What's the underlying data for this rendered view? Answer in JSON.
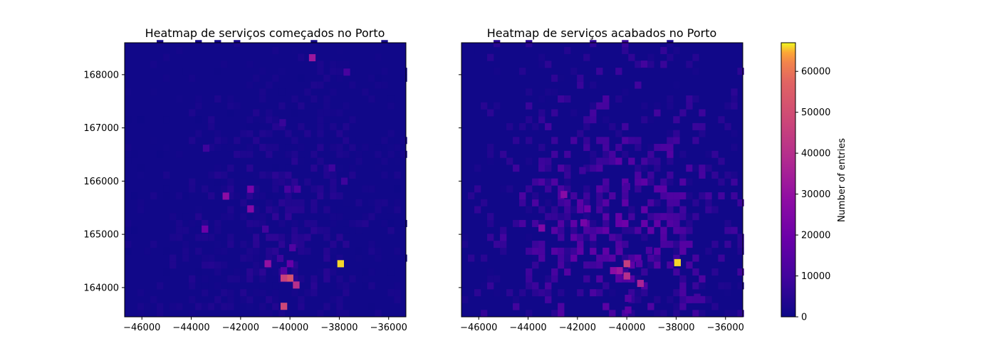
{
  "chart_data": [
    {
      "type": "heatmap",
      "title": "Heatmap de serviços começados no Porto",
      "x_ticks": [
        "−46000",
        "−44000",
        "−42000",
        "−40000",
        "−38000",
        "−36000"
      ],
      "y_ticks": [
        "164000",
        "165000",
        "166000",
        "167000",
        "168000"
      ],
      "xlim": [
        -46700,
        -35300
      ],
      "ylim": [
        163450,
        168600
      ],
      "grid": {
        "x0": -46700,
        "dx": 260,
        "y0": 163450,
        "dy": 130,
        "nx": 44,
        "ny": 40
      },
      "background_level": 800,
      "hotspots": [
        {
          "x": -37950,
          "y": 164450,
          "v": 66000
        },
        {
          "x": -40000,
          "y": 164180,
          "v": 52000
        },
        {
          "x": -40250,
          "y": 164180,
          "v": 46000
        },
        {
          "x": -40250,
          "y": 163650,
          "v": 48000
        },
        {
          "x": -39750,
          "y": 164050,
          "v": 40000
        },
        {
          "x": -39100,
          "y": 168320,
          "v": 32000
        },
        {
          "x": -40900,
          "y": 164450,
          "v": 30000
        },
        {
          "x": -42600,
          "y": 165720,
          "v": 28000
        },
        {
          "x": -41600,
          "y": 165480,
          "v": 26000
        },
        {
          "x": -41600,
          "y": 165850,
          "v": 22000
        },
        {
          "x": -43450,
          "y": 165100,
          "v": 20000
        },
        {
          "x": -40000,
          "y": 164450,
          "v": 18000
        },
        {
          "x": -40250,
          "y": 164320,
          "v": 14000
        },
        {
          "x": -39900,
          "y": 164750,
          "v": 13000
        },
        {
          "x": -39700,
          "y": 165850,
          "v": 12000
        },
        {
          "x": -40100,
          "y": 165850,
          "v": 11000
        },
        {
          "x": -37700,
          "y": 168050,
          "v": 11000
        },
        {
          "x": -41000,
          "y": 165100,
          "v": 10000
        },
        {
          "x": -43400,
          "y": 166620,
          "v": 9000
        },
        {
          "x": -38300,
          "y": 166250,
          "v": 9000
        },
        {
          "x": -37800,
          "y": 166000,
          "v": 9000
        },
        {
          "x": -40300,
          "y": 167100,
          "v": 8000
        },
        {
          "x": -40400,
          "y": 164550,
          "v": 9000
        }
      ]
    },
    {
      "type": "heatmap",
      "title": "Heatmap de serviços acabados no Porto",
      "x_ticks": [
        "−46000",
        "−44000",
        "−42000",
        "−40000",
        "−38000",
        "−36000"
      ],
      "y_ticks": [
        "164000",
        "165000",
        "166000",
        "167000",
        "168000"
      ],
      "xlim": [
        -46700,
        -35300
      ],
      "ylim": [
        163450,
        168600
      ],
      "grid": {
        "x0": -46700,
        "dx": 260,
        "y0": 163450,
        "dy": 130,
        "nx": 44,
        "ny": 40
      },
      "background_level": 2500,
      "hotspots": [
        {
          "x": -37950,
          "y": 164470,
          "v": 66000
        },
        {
          "x": -40000,
          "y": 164450,
          "v": 45000
        },
        {
          "x": -40000,
          "y": 164220,
          "v": 40000
        },
        {
          "x": -40300,
          "y": 164320,
          "v": 32000
        },
        {
          "x": -39450,
          "y": 164080,
          "v": 36000
        },
        {
          "x": -40550,
          "y": 164320,
          "v": 28000
        },
        {
          "x": -42550,
          "y": 165750,
          "v": 27000
        },
        {
          "x": -43450,
          "y": 165120,
          "v": 25000
        },
        {
          "x": -41750,
          "y": 165220,
          "v": 22000
        },
        {
          "x": -41600,
          "y": 165480,
          "v": 20000
        },
        {
          "x": -39950,
          "y": 163580,
          "v": 16000
        },
        {
          "x": -39950,
          "y": 163800,
          "v": 14000
        },
        {
          "x": -40300,
          "y": 164680,
          "v": 15000
        },
        {
          "x": -39500,
          "y": 164450,
          "v": 14000
        },
        {
          "x": -39100,
          "y": 164700,
          "v": 12000
        },
        {
          "x": -37150,
          "y": 163820,
          "v": 10000
        },
        {
          "x": -40000,
          "y": 165900,
          "v": 11000
        },
        {
          "x": -39300,
          "y": 168200,
          "v": 10000
        },
        {
          "x": -41800,
          "y": 166200,
          "v": 9000
        }
      ]
    }
  ],
  "colorbar": {
    "label": "Number of entries",
    "ticks": [
      "0",
      "10000",
      "20000",
      "30000",
      "40000",
      "50000",
      "60000"
    ],
    "vmin": 0,
    "vmax": 67000
  }
}
